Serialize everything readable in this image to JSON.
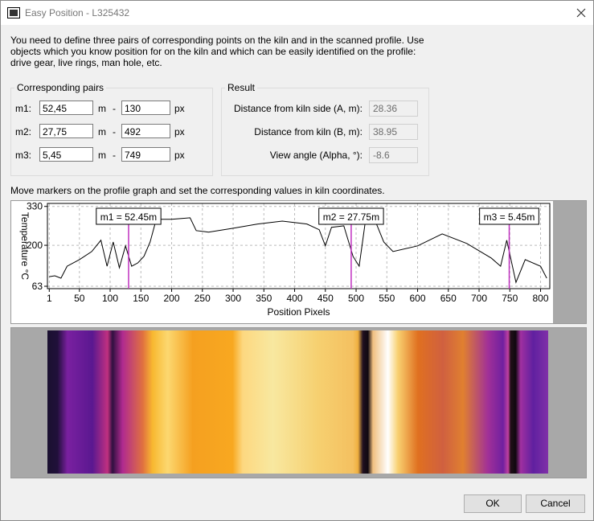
{
  "window": {
    "title": "Easy Position - L325432"
  },
  "instructions": "You need to define three pairs of corresponding points on the kiln and in the scanned profile. Use objects which you know position for on the kiln and which can be easily identified on the profile: drive gear, live rings, man hole, etc.",
  "pairs": {
    "title": "Corresponding pairs",
    "rows": [
      {
        "label": "m1:",
        "meters": "52,45",
        "m_unit": "m",
        "sep": "-",
        "pixels": "130",
        "px_unit": "px"
      },
      {
        "label": "m2:",
        "meters": "27,75",
        "m_unit": "m",
        "sep": "-",
        "pixels": "492",
        "px_unit": "px"
      },
      {
        "label": "m3:",
        "meters": "5,45",
        "m_unit": "m",
        "sep": "-",
        "pixels": "749",
        "px_unit": "px"
      }
    ]
  },
  "result": {
    "title": "Result",
    "rows": [
      {
        "label": "Distance from kiln side (A, m):",
        "value": "28.36"
      },
      {
        "label": "Distance from kiln (B, m):",
        "value": "38.95"
      },
      {
        "label": "View angle (Alpha, °):",
        "value": "-8.6"
      }
    ]
  },
  "hint": "Move markers on the profile graph and set the corresponding values in kiln coordinates.",
  "chart_data": {
    "type": "line",
    "xlabel": "Position Pixels",
    "ylabel": "Temperature °C",
    "xlim": [
      -2,
      815
    ],
    "xticks": [
      1,
      50,
      100,
      150,
      200,
      250,
      300,
      350,
      400,
      450,
      500,
      550,
      600,
      650,
      700,
      750,
      800
    ],
    "ylim": [
      55,
      340
    ],
    "yticks": [
      63,
      200,
      330
    ],
    "grid": true,
    "series": [
      {
        "name": "profile",
        "color": "#000000",
        "x": [
          1,
          10,
          20,
          30,
          50,
          70,
          85,
          95,
          105,
          115,
          125,
          135,
          145,
          155,
          165,
          175,
          200,
          230,
          240,
          260,
          300,
          340,
          380,
          420,
          440,
          450,
          460,
          480,
          495,
          505,
          515,
          530,
          545,
          560,
          600,
          640,
          680,
          720,
          735,
          745,
          760,
          775,
          800,
          810
        ],
        "values": [
          95,
          98,
          90,
          130,
          152,
          179,
          217,
          130,
          211,
          125,
          198,
          130,
          141,
          163,
          211,
          287,
          287,
          292,
          249,
          244,
          257,
          271,
          281,
          271,
          252,
          198,
          260,
          265,
          163,
          130,
          279,
          287,
          211,
          179,
          198,
          238,
          206,
          157,
          130,
          217,
          76,
          152,
          130,
          90
        ]
      }
    ],
    "markers": [
      {
        "label": "m1 = 52.45m",
        "x": 130,
        "color": "#c030c0"
      },
      {
        "label": "m2 = 27.75m",
        "x": 492,
        "color": "#c030c0"
      },
      {
        "label": "m3 = 5.45m",
        "x": 749,
        "color": "#c030c0"
      }
    ]
  },
  "buttons": {
    "ok": "OK",
    "cancel": "Cancel"
  }
}
